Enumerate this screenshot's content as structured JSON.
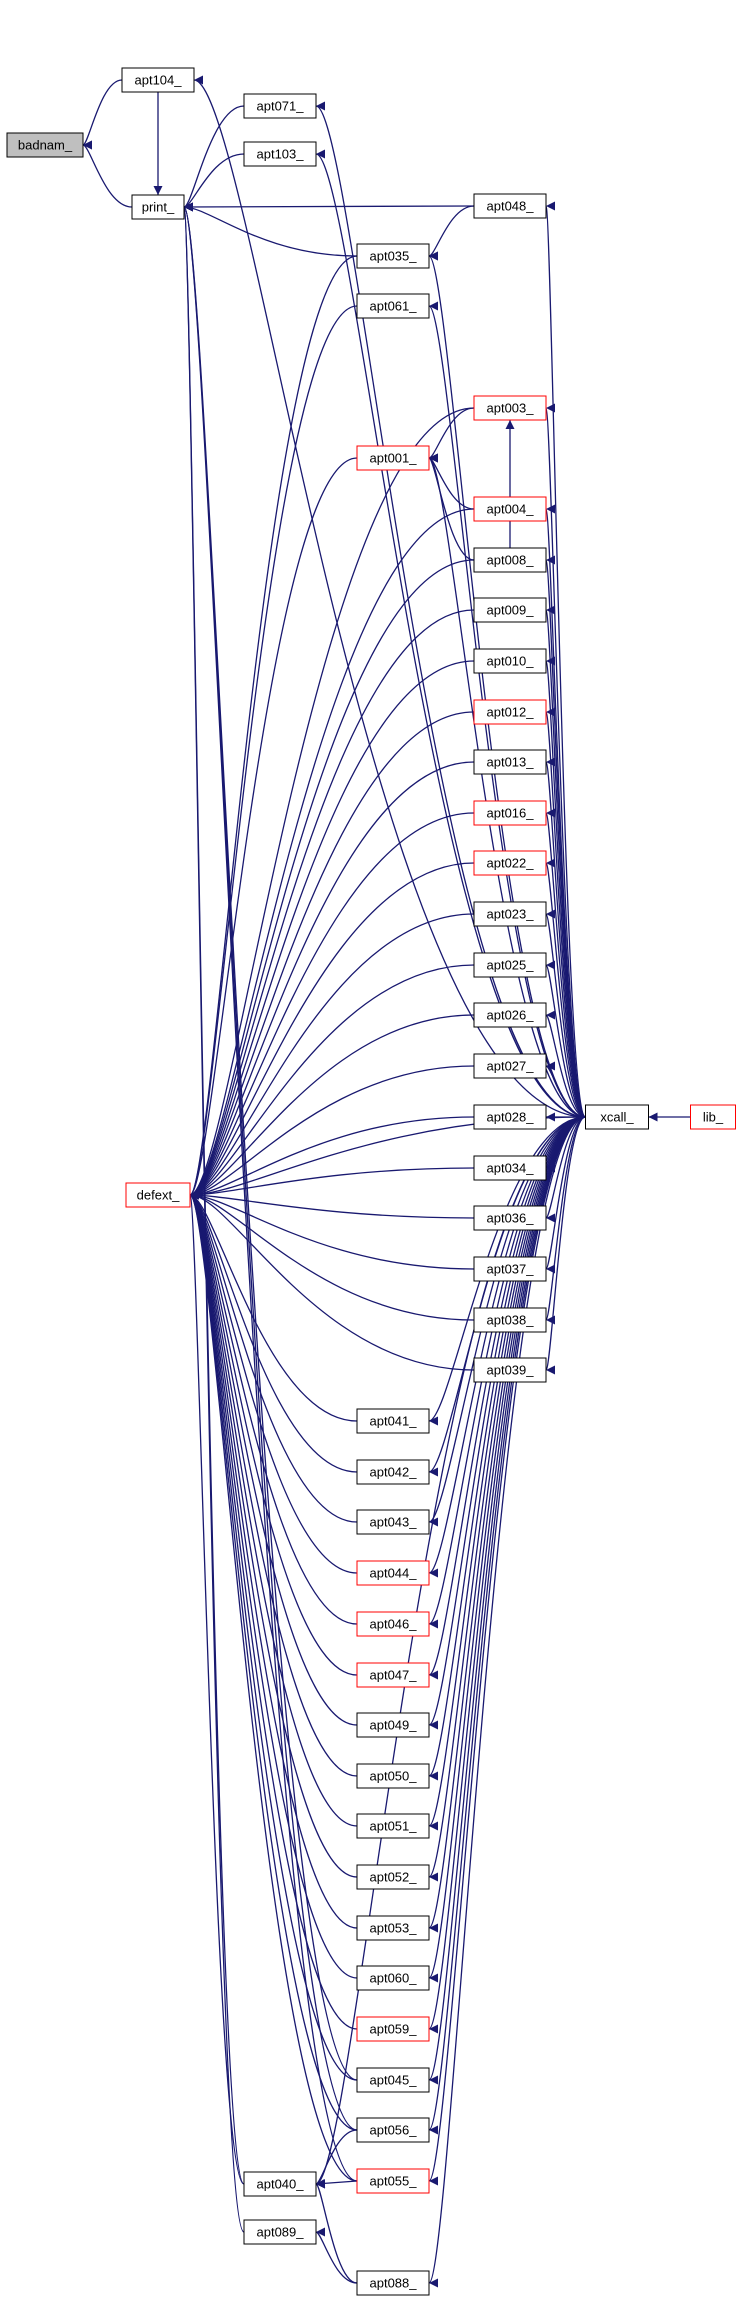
{
  "diagram": {
    "nodes": [
      {
        "id": "badnam",
        "label": "badnam_",
        "style": "gray"
      },
      {
        "id": "apt104",
        "label": "apt104_",
        "style": "black"
      },
      {
        "id": "print",
        "label": "print_",
        "style": "black"
      },
      {
        "id": "apt071",
        "label": "apt071_",
        "style": "black"
      },
      {
        "id": "apt103",
        "label": "apt103_",
        "style": "black"
      },
      {
        "id": "apt048",
        "label": "apt048_",
        "style": "black"
      },
      {
        "id": "apt035",
        "label": "apt035_",
        "style": "black"
      },
      {
        "id": "apt061",
        "label": "apt061_",
        "style": "black"
      },
      {
        "id": "apt003",
        "label": "apt003_",
        "style": "red"
      },
      {
        "id": "apt001",
        "label": "apt001_",
        "style": "red"
      },
      {
        "id": "apt004",
        "label": "apt004_",
        "style": "red"
      },
      {
        "id": "apt008",
        "label": "apt008_",
        "style": "black"
      },
      {
        "id": "apt009",
        "label": "apt009_",
        "style": "black"
      },
      {
        "id": "apt010",
        "label": "apt010_",
        "style": "black"
      },
      {
        "id": "apt012",
        "label": "apt012_",
        "style": "red"
      },
      {
        "id": "apt013",
        "label": "apt013_",
        "style": "black"
      },
      {
        "id": "apt016",
        "label": "apt016_",
        "style": "red"
      },
      {
        "id": "apt022",
        "label": "apt022_",
        "style": "red"
      },
      {
        "id": "apt023",
        "label": "apt023_",
        "style": "black"
      },
      {
        "id": "apt025",
        "label": "apt025_",
        "style": "black"
      },
      {
        "id": "apt026",
        "label": "apt026_",
        "style": "black"
      },
      {
        "id": "apt027",
        "label": "apt027_",
        "style": "black"
      },
      {
        "id": "apt028",
        "label": "apt028_",
        "style": "black"
      },
      {
        "id": "xcall",
        "label": "xcall_",
        "style": "black"
      },
      {
        "id": "lib",
        "label": "lib_",
        "style": "red"
      },
      {
        "id": "defext",
        "label": "defext_",
        "style": "red"
      },
      {
        "id": "apt034",
        "label": "apt034_",
        "style": "black"
      },
      {
        "id": "apt036",
        "label": "apt036_",
        "style": "black"
      },
      {
        "id": "apt037",
        "label": "apt037_",
        "style": "black"
      },
      {
        "id": "apt038",
        "label": "apt038_",
        "style": "black"
      },
      {
        "id": "apt039",
        "label": "apt039_",
        "style": "black"
      },
      {
        "id": "apt041",
        "label": "apt041_",
        "style": "black"
      },
      {
        "id": "apt042",
        "label": "apt042_",
        "style": "black"
      },
      {
        "id": "apt043",
        "label": "apt043_",
        "style": "black"
      },
      {
        "id": "apt044",
        "label": "apt044_",
        "style": "red"
      },
      {
        "id": "apt046",
        "label": "apt046_",
        "style": "red"
      },
      {
        "id": "apt047",
        "label": "apt047_",
        "style": "red"
      },
      {
        "id": "apt049",
        "label": "apt049_",
        "style": "black"
      },
      {
        "id": "apt050",
        "label": "apt050_",
        "style": "black"
      },
      {
        "id": "apt051",
        "label": "apt051_",
        "style": "black"
      },
      {
        "id": "apt052",
        "label": "apt052_",
        "style": "black"
      },
      {
        "id": "apt053",
        "label": "apt053_",
        "style": "black"
      },
      {
        "id": "apt060",
        "label": "apt060_",
        "style": "black"
      },
      {
        "id": "apt059",
        "label": "apt059_",
        "style": "red"
      },
      {
        "id": "apt045",
        "label": "apt045_",
        "style": "black"
      },
      {
        "id": "apt056",
        "label": "apt056_",
        "style": "black"
      },
      {
        "id": "apt040",
        "label": "apt040_",
        "style": "black"
      },
      {
        "id": "apt055",
        "label": "apt055_",
        "style": "red"
      },
      {
        "id": "apt089",
        "label": "apt089_",
        "style": "black"
      },
      {
        "id": "apt088",
        "label": "apt088_",
        "style": "black"
      }
    ],
    "edges": [
      [
        "apt104",
        "badnam"
      ],
      [
        "print",
        "badnam"
      ],
      [
        "apt071",
        "print"
      ],
      [
        "apt103",
        "print"
      ],
      [
        "apt048",
        "print"
      ],
      [
        "apt104",
        "print"
      ],
      [
        "apt040",
        "print"
      ],
      [
        "apt045",
        "print"
      ],
      [
        "apt055",
        "print"
      ],
      [
        "apt089",
        "print"
      ],
      [
        "apt035",
        "print"
      ],
      [
        "apt056",
        "print"
      ],
      [
        "xcall",
        "apt104"
      ],
      [
        "xcall",
        "apt071"
      ],
      [
        "xcall",
        "apt103"
      ],
      [
        "xcall",
        "apt048"
      ],
      [
        "apt048",
        "apt035"
      ],
      [
        "xcall",
        "apt035"
      ],
      [
        "xcall",
        "apt061"
      ],
      [
        "apt003",
        "apt001"
      ],
      [
        "apt004",
        "apt001"
      ],
      [
        "apt008",
        "apt001"
      ],
      [
        "apt008",
        "apt003"
      ],
      [
        "xcall",
        "apt003"
      ],
      [
        "xcall",
        "apt001"
      ],
      [
        "xcall",
        "apt004"
      ],
      [
        "xcall",
        "apt008"
      ],
      [
        "xcall",
        "apt009"
      ],
      [
        "xcall",
        "apt010"
      ],
      [
        "xcall",
        "apt012"
      ],
      [
        "xcall",
        "apt013"
      ],
      [
        "xcall",
        "apt016"
      ],
      [
        "xcall",
        "apt022"
      ],
      [
        "xcall",
        "apt023"
      ],
      [
        "xcall",
        "apt025"
      ],
      [
        "xcall",
        "apt026"
      ],
      [
        "xcall",
        "apt027"
      ],
      [
        "xcall",
        "apt028"
      ],
      [
        "lib",
        "xcall"
      ],
      [
        "xcall",
        "apt034"
      ],
      [
        "xcall",
        "apt036"
      ],
      [
        "xcall",
        "apt037"
      ],
      [
        "xcall",
        "apt038"
      ],
      [
        "xcall",
        "apt039"
      ],
      [
        "xcall",
        "apt041"
      ],
      [
        "xcall",
        "apt042"
      ],
      [
        "xcall",
        "apt043"
      ],
      [
        "xcall",
        "apt044"
      ],
      [
        "xcall",
        "apt046"
      ],
      [
        "xcall",
        "apt047"
      ],
      [
        "xcall",
        "apt049"
      ],
      [
        "xcall",
        "apt050"
      ],
      [
        "xcall",
        "apt051"
      ],
      [
        "xcall",
        "apt052"
      ],
      [
        "xcall",
        "apt053"
      ],
      [
        "xcall",
        "apt060"
      ],
      [
        "xcall",
        "apt059"
      ],
      [
        "xcall",
        "apt045"
      ],
      [
        "xcall",
        "apt056"
      ],
      [
        "xcall",
        "apt055"
      ],
      [
        "xcall",
        "apt040"
      ],
      [
        "xcall",
        "apt088"
      ],
      [
        "apt035",
        "defext"
      ],
      [
        "apt061",
        "defext"
      ],
      [
        "apt001",
        "defext"
      ],
      [
        "apt003",
        "defext"
      ],
      [
        "apt004",
        "defext"
      ],
      [
        "apt008",
        "defext"
      ],
      [
        "apt009",
        "defext"
      ],
      [
        "apt010",
        "defext"
      ],
      [
        "apt012",
        "defext"
      ],
      [
        "apt013",
        "defext"
      ],
      [
        "apt016",
        "defext"
      ],
      [
        "apt022",
        "defext"
      ],
      [
        "apt023",
        "defext"
      ],
      [
        "apt025",
        "defext"
      ],
      [
        "apt026",
        "defext"
      ],
      [
        "apt027",
        "defext"
      ],
      [
        "apt028",
        "defext"
      ],
      [
        "apt034",
        "defext"
      ],
      [
        "apt036",
        "defext"
      ],
      [
        "apt037",
        "defext"
      ],
      [
        "apt038",
        "defext"
      ],
      [
        "apt039",
        "defext"
      ],
      [
        "apt041",
        "defext"
      ],
      [
        "apt042",
        "defext"
      ],
      [
        "apt043",
        "defext"
      ],
      [
        "apt044",
        "defext"
      ],
      [
        "apt046",
        "defext"
      ],
      [
        "apt047",
        "defext"
      ],
      [
        "apt049",
        "defext"
      ],
      [
        "apt050",
        "defext"
      ],
      [
        "apt051",
        "defext"
      ],
      [
        "apt052",
        "defext"
      ],
      [
        "apt053",
        "defext"
      ],
      [
        "apt060",
        "defext"
      ],
      [
        "apt059",
        "defext"
      ],
      [
        "apt045",
        "defext"
      ],
      [
        "apt056",
        "defext"
      ],
      [
        "apt055",
        "defext"
      ],
      [
        "apt040",
        "defext"
      ],
      [
        "xcall",
        "defext"
      ],
      [
        "apt056",
        "apt040"
      ],
      [
        "apt055",
        "apt040"
      ],
      [
        "apt088",
        "apt040"
      ],
      [
        "apt088",
        "apt089"
      ]
    ]
  },
  "colors": {
    "edge": "#191970",
    "node_black": "#000000",
    "node_red": "#ff0000",
    "node_gray_fill": "#bfbfbf"
  }
}
